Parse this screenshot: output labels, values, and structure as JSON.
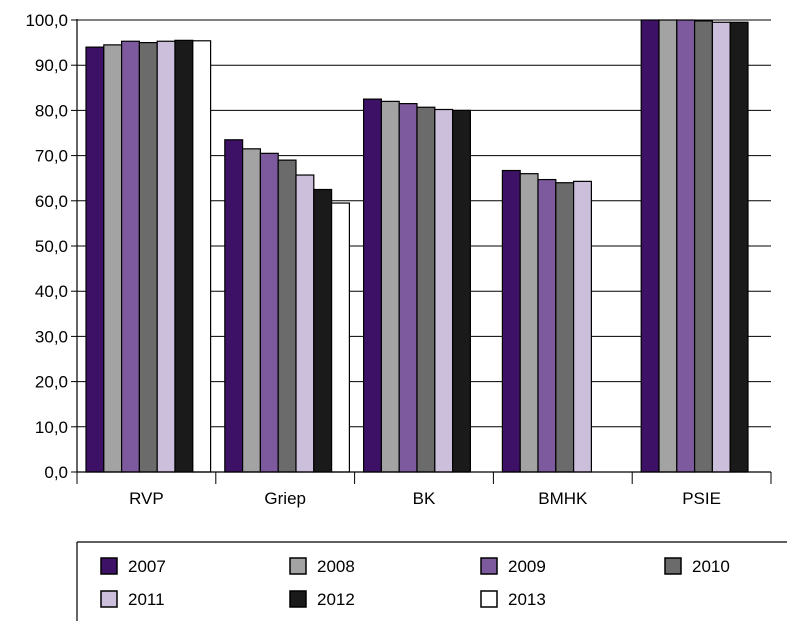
{
  "chart_data": {
    "type": "bar",
    "categories": [
      "RVP",
      "Griep",
      "BK",
      "BMHK",
      "PSIE"
    ],
    "ylim": [
      0,
      100
    ],
    "y_ticks": [
      "0,0",
      "10,0",
      "20,0",
      "30,0",
      "40,0",
      "50,0",
      "60,0",
      "70,0",
      "80,0",
      "90,0",
      "100,0"
    ],
    "grid": true,
    "legend_position": "bottom",
    "series": [
      {
        "name": "2007",
        "color": "#3d1266",
        "values": [
          94.0,
          73.5,
          82.5,
          66.7,
          100.0
        ]
      },
      {
        "name": "2008",
        "color": "#a3a3a3",
        "values": [
          94.5,
          71.5,
          82.0,
          66.0,
          100.0
        ]
      },
      {
        "name": "2009",
        "color": "#7d5a9e",
        "values": [
          95.3,
          70.5,
          81.5,
          64.7,
          100.0
        ]
      },
      {
        "name": "2010",
        "color": "#6b6b6b",
        "values": [
          95.0,
          69.0,
          80.7,
          64.0,
          99.8
        ]
      },
      {
        "name": "2011",
        "color": "#cbbfdc",
        "values": [
          95.3,
          65.7,
          80.2,
          64.3,
          99.5
        ]
      },
      {
        "name": "2012",
        "color": "#1a1a1a",
        "values": [
          95.5,
          62.5,
          80.0,
          null,
          99.5
        ]
      },
      {
        "name": "2013",
        "color": "#ffffff",
        "values": [
          95.4,
          59.5,
          null,
          null,
          null
        ]
      }
    ]
  }
}
